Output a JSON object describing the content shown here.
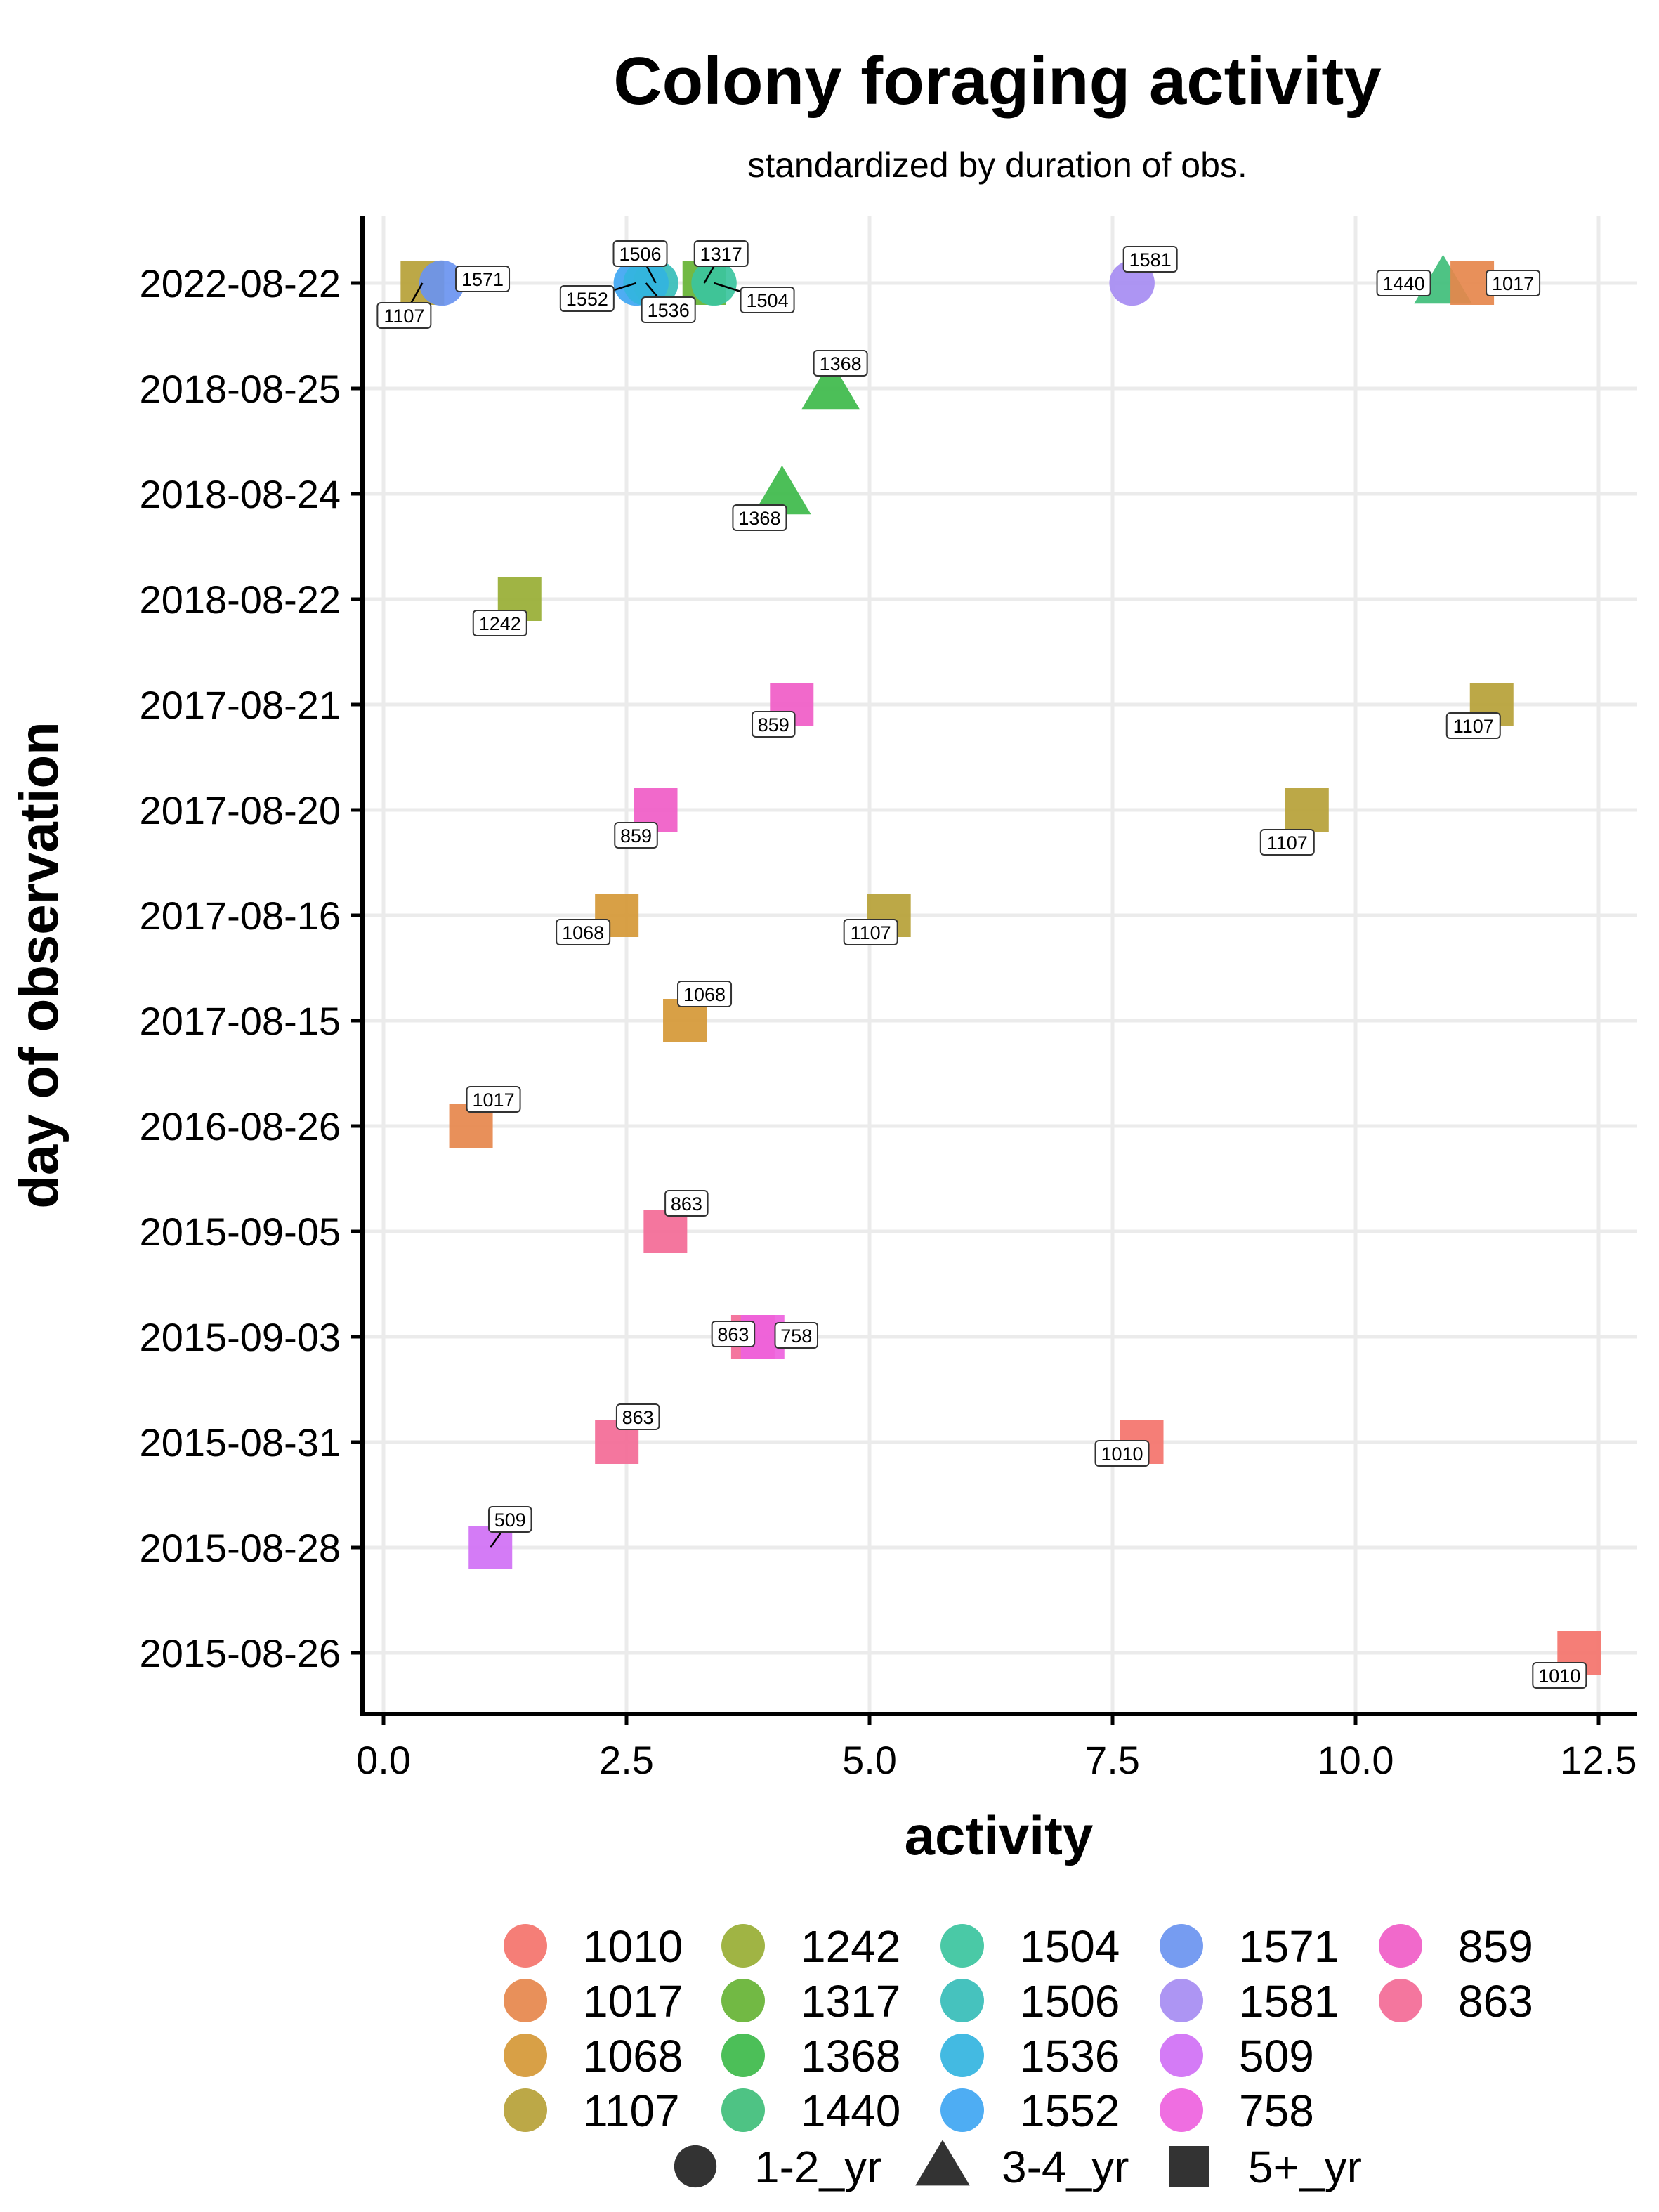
{
  "chart_data": {
    "type": "scatter",
    "title": "Colony foraging activity",
    "subtitle": "standardized by duration of obs.",
    "xlabel": "activity",
    "ylabel": "day of observation",
    "xlim": [
      -0.5,
      12.8
    ],
    "x_ticks": [
      "0.0",
      "2.5",
      "5.0",
      "7.5",
      "10.0",
      "12.5"
    ],
    "x_tick_values": [
      0,
      2.5,
      5,
      7.5,
      10,
      12.5
    ],
    "categories": [
      "2015-08-26",
      "2015-08-28",
      "2015-08-31",
      "2015-09-03",
      "2015-09-05",
      "2016-08-26",
      "2017-08-15",
      "2017-08-16",
      "2017-08-20",
      "2017-08-21",
      "2018-08-22",
      "2018-08-24",
      "2018-08-25",
      "2022-08-22"
    ],
    "grid": true,
    "legend_position": "bottom",
    "colors": {
      "1010": "#F8766D",
      "1017": "#E58700",
      "1068": "#C99800",
      "1107": "#A3A500",
      "1242": "#6BB100",
      "1317": "#00BA38",
      "1368": "#00BF7D",
      "1440": "#00C0AF",
      "1504": "#00BCD8",
      "1506": "#00B0F6",
      "1536": "#619CFF",
      "1552": "#B983FF",
      "1571": "#E76BF3",
      "1581": "#FD61D1",
      "509": "#FF67A4",
      "758": "#F8766D",
      "859": "#FC4FB6",
      "863": "#F5688F"
    },
    "point_colors": {
      "1010": "#F4736B",
      "1017": "#E6874C",
      "1068": "#D59836",
      "1107": "#B6A137",
      "1242": "#98AE34",
      "1317": "#66B334",
      "1368": "#3DBA4A",
      "1440": "#3FBE7A",
      "1504": "#3BC49E",
      "1506": "#36BDB9",
      "1536": "#33B4DF",
      "1552": "#3FA6F2",
      "1571": "#6A94F0",
      "1581": "#A68CF2",
      "509": "#D070F5",
      "758": "#EE62DE",
      "859": "#F05CC7",
      "863": "#F36A96"
    },
    "points": [
      {
        "x": 0.4,
        "y": "2022-08-22",
        "colony": "1107",
        "shape": "5+_yr",
        "label": "1107"
      },
      {
        "x": 0.6,
        "y": "2022-08-22",
        "colony": "1571",
        "shape": "1-2_yr",
        "label": "1571"
      },
      {
        "x": 2.6,
        "y": "2022-08-22",
        "colony": "1552",
        "shape": "1-2_yr",
        "label": "1552"
      },
      {
        "x": 2.8,
        "y": "2022-08-22",
        "colony": "1506",
        "shape": "1-2_yr",
        "label": "1506"
      },
      {
        "x": 2.7,
        "y": "2022-08-22",
        "colony": "1536",
        "shape": "1-2_yr",
        "label": "1536"
      },
      {
        "x": 3.3,
        "y": "2022-08-22",
        "colony": "1317",
        "shape": "5+_yr",
        "label": "1317"
      },
      {
        "x": 3.4,
        "y": "2022-08-22",
        "colony": "1504",
        "shape": "1-2_yr",
        "label": "1504"
      },
      {
        "x": 7.7,
        "y": "2022-08-22",
        "colony": "1581",
        "shape": "1-2_yr",
        "label": "1581"
      },
      {
        "x": 10.9,
        "y": "2022-08-22",
        "colony": "1440",
        "shape": "3-4_yr",
        "label": "1440"
      },
      {
        "x": 11.2,
        "y": "2022-08-22",
        "colony": "1017",
        "shape": "5+_yr",
        "label": "1017"
      },
      {
        "x": 4.6,
        "y": "2018-08-25",
        "colony": "1368",
        "shape": "3-4_yr",
        "label": "1368"
      },
      {
        "x": 4.1,
        "y": "2018-08-24",
        "colony": "1368",
        "shape": "3-4_yr",
        "label": "1368"
      },
      {
        "x": 1.4,
        "y": "2018-08-22",
        "colony": "1242",
        "shape": "5+_yr",
        "label": "1242"
      },
      {
        "x": 4.2,
        "y": "2017-08-21",
        "colony": "859",
        "shape": "5+_yr",
        "label": "859"
      },
      {
        "x": 11.4,
        "y": "2017-08-21",
        "colony": "1107",
        "shape": "5+_yr",
        "label": "1107"
      },
      {
        "x": 2.8,
        "y": "2017-08-20",
        "colony": "859",
        "shape": "5+_yr",
        "label": "859"
      },
      {
        "x": 9.5,
        "y": "2017-08-20",
        "colony": "1107",
        "shape": "5+_yr",
        "label": "1107"
      },
      {
        "x": 2.4,
        "y": "2017-08-16",
        "colony": "1068",
        "shape": "5+_yr",
        "label": "1068"
      },
      {
        "x": 5.2,
        "y": "2017-08-16",
        "colony": "1107",
        "shape": "5+_yr",
        "label": "1107"
      },
      {
        "x": 3.1,
        "y": "2017-08-15",
        "colony": "1068",
        "shape": "5+_yr",
        "label": "1068"
      },
      {
        "x": 0.9,
        "y": "2016-08-26",
        "colony": "1017",
        "shape": "5+_yr",
        "label": "1017"
      },
      {
        "x": 2.9,
        "y": "2015-09-05",
        "colony": "863",
        "shape": "5+_yr",
        "label": "863"
      },
      {
        "x": 3.8,
        "y": "2015-09-03",
        "colony": "863",
        "shape": "5+_yr",
        "label": "863"
      },
      {
        "x": 3.9,
        "y": "2015-09-03",
        "colony": "758",
        "shape": "5+_yr",
        "label": "758"
      },
      {
        "x": 2.4,
        "y": "2015-08-31",
        "colony": "863",
        "shape": "5+_yr",
        "label": "863"
      },
      {
        "x": 7.8,
        "y": "2015-08-31",
        "colony": "1010",
        "shape": "5+_yr",
        "label": "1010"
      },
      {
        "x": 1.1,
        "y": "2015-08-28",
        "colony": "509",
        "shape": "5+_yr",
        "label": "509"
      },
      {
        "x": 12.3,
        "y": "2015-08-26",
        "colony": "1010",
        "shape": "5+_yr",
        "label": "1010"
      }
    ],
    "legend_colonies": [
      "1010",
      "1017",
      "1068",
      "1107",
      "1242",
      "1317",
      "1368",
      "1440",
      "1504",
      "1506",
      "1536",
      "1552",
      "1571",
      "1581",
      "509",
      "758",
      "859",
      "863"
    ],
    "legend_shapes": [
      "1-2_yr",
      "3-4_yr",
      "5+_yr"
    ]
  }
}
